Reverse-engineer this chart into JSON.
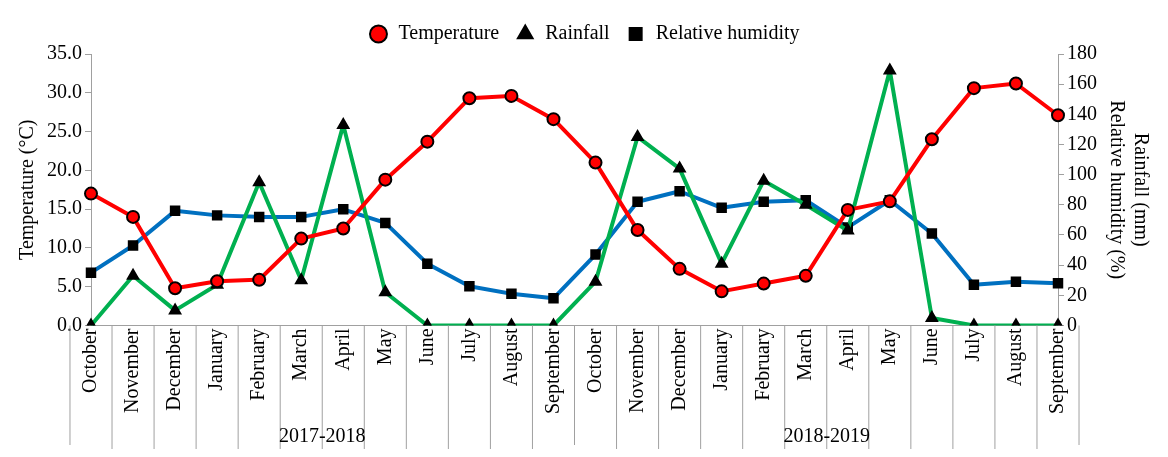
{
  "chart_data": {
    "type": "line",
    "ylabel": "Temperature (°C)",
    "y2label": "Rainfall (mm)\nRelative humidity (%)",
    "categories": [
      "October",
      "November",
      "December",
      "January",
      "February",
      "March",
      "April",
      "May",
      "June",
      "July",
      "August",
      "September",
      "October",
      "November",
      "December",
      "January",
      "February",
      "March",
      "April",
      "May",
      "June",
      "July",
      "August",
      "September"
    ],
    "series": [
      {
        "name": "Temperature",
        "color": "#ff0000",
        "marker": "circle",
        "values": [
          17.0,
          14.0,
          4.8,
          5.7,
          5.9,
          11.2,
          12.5,
          18.8,
          23.7,
          29.3,
          29.6,
          26.6,
          21.0,
          12.3,
          7.3,
          4.4,
          5.4,
          6.4,
          14.9,
          16.0,
          24.0,
          30.6,
          31.2,
          27.1
        ]
      },
      {
        "name": "Rainfall",
        "color": "#00b050",
        "marker": "triangle",
        "axis": "y2",
        "values": [
          0,
          33,
          10,
          27,
          95,
          30,
          133,
          22,
          0,
          0,
          0,
          0,
          29,
          125,
          104,
          41,
          96,
          80,
          63,
          169,
          5,
          0,
          0,
          0
        ]
      },
      {
        "name": "Relative humidity",
        "color": "#0070c0",
        "marker": "square",
        "axis": "y2",
        "values": [
          35,
          53,
          76,
          73,
          72,
          72,
          77,
          68,
          41,
          26,
          21,
          18,
          47,
          82,
          89,
          78,
          82,
          83,
          65,
          83,
          61,
          27,
          29,
          28
        ]
      }
    ],
    "ylim": [
      0,
      35
    ],
    "yticks": [
      {
        "value": 0,
        "label": "0.0"
      },
      {
        "value": 5,
        "label": "5.0"
      },
      {
        "value": 10,
        "label": "10.0"
      },
      {
        "value": 15,
        "label": "15.0"
      },
      {
        "value": 20,
        "label": "20.0"
      },
      {
        "value": 25,
        "label": "25.0"
      },
      {
        "value": 30,
        "label": "30.0"
      },
      {
        "value": 35,
        "label": "35.0"
      }
    ],
    "y2lim": [
      0,
      180
    ],
    "y2ticks": [
      0,
      20,
      40,
      60,
      80,
      100,
      120,
      140,
      160,
      180
    ],
    "annotations": [
      "2017-2018",
      "2018-2019"
    ],
    "grid": false,
    "legend": "top"
  }
}
